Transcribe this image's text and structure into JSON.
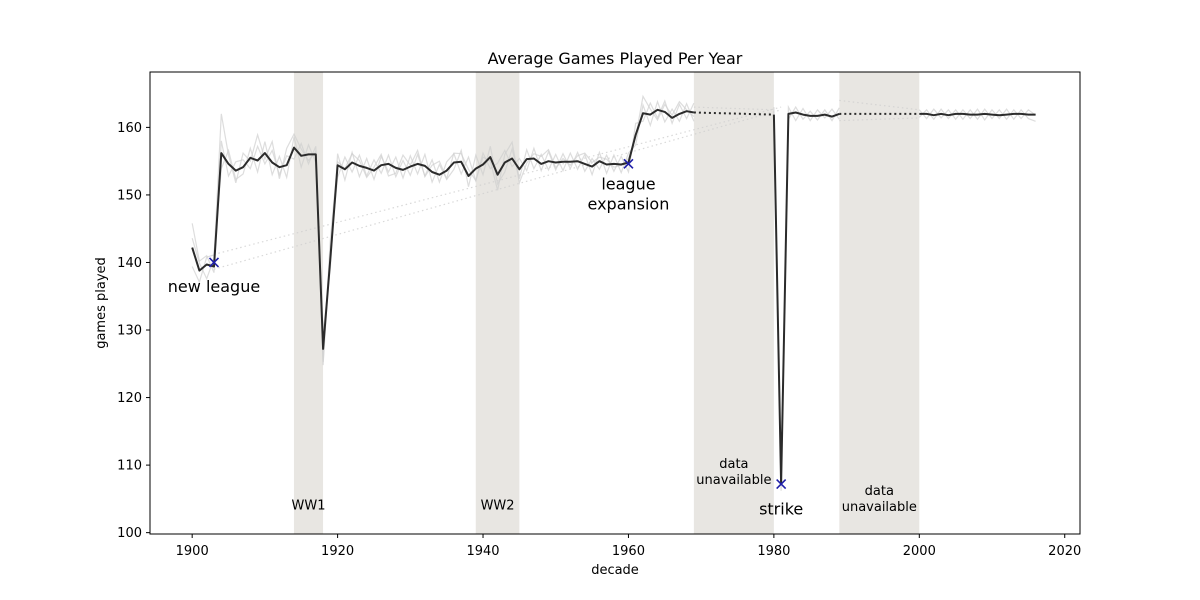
{
  "chart_data": {
    "type": "line",
    "title": "Average Games Played Per Year",
    "xlabel": "decade",
    "ylabel": "games played",
    "xlim": [
      1894.2,
      2022.1
    ],
    "ylim": [
      99.8,
      168.2
    ],
    "xticks": [
      1900,
      1920,
      1940,
      1960,
      1980,
      2000,
      2020
    ],
    "yticks": [
      100,
      110,
      120,
      130,
      140,
      150,
      160
    ],
    "grid": false,
    "shaded_regions": [
      {
        "x0": 1914,
        "x1": 1918,
        "label": "WW1",
        "label_x": 1916,
        "label_y": 104
      },
      {
        "x0": 1939,
        "x1": 1945,
        "label": "WW2",
        "label_x": 1942,
        "label_y": 104
      },
      {
        "x0": 1969,
        "x1": 1980,
        "label": "data unavailable",
        "label_lines": [
          "data",
          "unavailable"
        ],
        "label_x": 1974.5,
        "label_y": 109
      },
      {
        "x0": 1989,
        "x1": 2000,
        "label": "data unavailable",
        "label_lines": [
          "data",
          "unavailable"
        ],
        "label_x": 1994.5,
        "label_y": 105
      }
    ],
    "annotations": [
      {
        "x": 1903,
        "y": 140,
        "text": "new league",
        "text_lines": [
          "new league"
        ],
        "text_x": 1903,
        "text_y": 136.5
      },
      {
        "x": 1960,
        "y": 154.6,
        "text": "league expansion",
        "text_lines": [
          "league",
          "expansion"
        ],
        "text_x": 1960,
        "text_y": 150.2
      },
      {
        "x": 1981,
        "y": 107.2,
        "text": "strike",
        "text_lines": [
          "strike"
        ],
        "text_x": 1981,
        "text_y": 103.6
      }
    ],
    "main_series": {
      "segments": [
        {
          "x": [
            1900,
            1901,
            1902,
            1903,
            1904,
            1905,
            1906,
            1907,
            1908,
            1909,
            1910,
            1911,
            1912,
            1913,
            1914,
            1915,
            1916,
            1917,
            1918,
            1919,
            1920,
            1921,
            1922,
            1923,
            1924,
            1925,
            1926,
            1927,
            1928,
            1929,
            1930,
            1931,
            1932,
            1933,
            1934,
            1935,
            1936,
            1937,
            1938,
            1939,
            1940,
            1941,
            1942,
            1943,
            1944,
            1945,
            1946,
            1947,
            1948,
            1949,
            1950,
            1951,
            1952,
            1953,
            1954,
            1955,
            1956,
            1957,
            1958,
            1959,
            1960,
            1961,
            1962,
            1963,
            1964,
            1965,
            1966,
            1967,
            1968,
            1969
          ],
          "y": [
            142.2,
            138.8,
            139.7,
            139.4,
            156.2,
            154.6,
            153.6,
            154.1,
            155.5,
            155.1,
            156.2,
            154.8,
            154.1,
            154.4,
            157.0,
            155.8,
            156.0,
            156.0,
            127.2,
            140.5,
            154.4,
            153.8,
            154.8,
            154.3,
            154.0,
            153.6,
            154.4,
            154.6,
            154.0,
            153.7,
            154.2,
            154.6,
            154.3,
            153.4,
            153.0,
            153.6,
            154.8,
            154.9,
            152.8,
            153.9,
            154.5,
            155.6,
            153.0,
            154.8,
            155.4,
            153.8,
            155.3,
            155.4,
            154.6,
            155.0,
            154.8,
            154.9,
            154.9,
            155.0,
            154.6,
            154.2,
            155.0,
            154.5,
            154.6,
            154.5,
            154.8,
            158.9,
            162.1,
            161.9,
            162.6,
            162.3,
            161.4,
            162.0,
            162.4,
            162.2
          ]
        },
        {
          "x": [
            1980,
            1981,
            1982,
            1983,
            1984,
            1985,
            1986,
            1987,
            1988,
            1989
          ],
          "y": [
            161.9,
            107.2,
            162.0,
            162.2,
            161.9,
            161.7,
            161.7,
            161.9,
            161.6,
            162.0
          ]
        },
        {
          "x": [
            2000,
            2001,
            2002,
            2003,
            2004,
            2005,
            2006,
            2007,
            2008,
            2009,
            2010,
            2011,
            2012,
            2013,
            2014,
            2015,
            2016
          ],
          "y": [
            162.0,
            162.0,
            161.8,
            162.0,
            161.8,
            162.0,
            162.0,
            161.9,
            161.9,
            162.0,
            161.9,
            161.8,
            161.9,
            162.0,
            162.0,
            161.9,
            161.9
          ]
        }
      ],
      "gaps_dotted": [
        {
          "x": [
            1969,
            1980
          ],
          "y": [
            162.2,
            161.9
          ]
        },
        {
          "x": [
            1989,
            2000
          ],
          "y": [
            162.0,
            162.0
          ]
        }
      ]
    },
    "background_traces": [
      {
        "x": [
          1900,
          1901,
          1902,
          1903,
          1904,
          1905,
          1906,
          1907,
          1908,
          1909,
          1910,
          1911,
          1912,
          1913,
          1914,
          1915,
          1916,
          1917,
          1918,
          1919,
          1920,
          1921,
          1922,
          1923,
          1924,
          1925,
          1926,
          1927,
          1928,
          1929,
          1930,
          1931,
          1932,
          1933,
          1934,
          1935,
          1936,
          1937,
          1938,
          1939,
          1940,
          1941,
          1942,
          1943,
          1944,
          1945,
          1946,
          1947,
          1948,
          1949,
          1950,
          1951,
          1952,
          1953,
          1954,
          1955,
          1956,
          1957,
          1958,
          1959,
          1960,
          1961,
          1962,
          1963,
          1964,
          1965,
          1966,
          1967,
          1968,
          1969
        ],
        "y": [
          145.8,
          140.2,
          141.0,
          138.5,
          158.0,
          152.8,
          154.9,
          155.2,
          153.9,
          157.2,
          154.6,
          156.6,
          153.0,
          155.8,
          155.3,
          157.6,
          154.6,
          157.2,
          124.8,
          141.8,
          152.6,
          155.6,
          153.4,
          155.9,
          152.8,
          155.2,
          153.2,
          155.9,
          152.7,
          155.1,
          152.9,
          156.0,
          152.8,
          155.2,
          151.9,
          154.9,
          156.1,
          153.1,
          155.6,
          152.1,
          156.2,
          153.9,
          154.7,
          156.6,
          154.2,
          155.4,
          153.6,
          156.9,
          153.6,
          156.4,
          153.7,
          156.1,
          153.9,
          156.3,
          153.5,
          155.4,
          153.8,
          155.9,
          153.5,
          155.7,
          153.4,
          160.6,
          160.9,
          163.6,
          161.4,
          163.9,
          160.6,
          163.4,
          161.3,
          163.6
        ]
      },
      {
        "x": [
          1900,
          1901,
          1902,
          1903,
          1904,
          1905,
          1906,
          1907,
          1908,
          1909,
          1910,
          1911,
          1912,
          1913,
          1914,
          1915,
          1916,
          1917,
          1918,
          1919,
          1920,
          1921,
          1922,
          1923,
          1924,
          1925,
          1926,
          1927,
          1928,
          1929,
          1930,
          1931,
          1932,
          1933,
          1934,
          1935,
          1936,
          1937,
          1938,
          1939,
          1940,
          1941,
          1942,
          1943,
          1944,
          1945,
          1946,
          1947,
          1948,
          1949,
          1950,
          1951,
          1952,
          1953,
          1954,
          1955,
          1956,
          1957,
          1958,
          1959,
          1960,
          1961,
          1962,
          1963,
          1964,
          1965,
          1966,
          1967,
          1968,
          1969
        ],
        "y": [
          139.4,
          137.1,
          140.8,
          141.1,
          153.9,
          156.6,
          152.3,
          153.1,
          156.9,
          153.4,
          157.9,
          153.0,
          155.7,
          152.6,
          158.6,
          154.1,
          157.4,
          154.8,
          129.6,
          139.1,
          156.1,
          152.2,
          156.3,
          152.7,
          155.4,
          152.3,
          155.7,
          153.4,
          155.6,
          152.5,
          155.8,
          153.1,
          156.0,
          151.9,
          154.5,
          152.3,
          153.8,
          156.6,
          151.2,
          155.9,
          153.0,
          157.2,
          151.6,
          153.4,
          156.8,
          152.4,
          156.7,
          153.9,
          156.0,
          153.7,
          156.0,
          153.6,
          156.2,
          153.8,
          156.0,
          153.0,
          156.3,
          153.2,
          155.9,
          153.3,
          156.2,
          157.4,
          163.3,
          160.3,
          163.8,
          160.8,
          162.7,
          160.9,
          163.5,
          160.9
        ]
      },
      {
        "x": [
          1900,
          1901,
          1902,
          1903,
          1904,
          1905,
          1906,
          1907,
          1908,
          1909,
          1910,
          1911,
          1912,
          1913,
          1914,
          1915,
          1916,
          1917,
          1918,
          1919,
          1920,
          1921,
          1922,
          1923,
          1924,
          1925,
          1926,
          1927,
          1928,
          1929,
          1930,
          1931,
          1932,
          1933,
          1934,
          1935,
          1936,
          1937,
          1938,
          1939,
          1940,
          1941,
          1942,
          1943,
          1944,
          1945,
          1946,
          1947,
          1948,
          1949,
          1950,
          1951,
          1952,
          1953,
          1954,
          1955,
          1956,
          1957,
          1958,
          1959,
          1960,
          1961,
          1962,
          1963,
          1964,
          1965,
          1966,
          1967,
          1968,
          1969
        ],
        "y": [
          143.6,
          139.9,
          137.6,
          140.6,
          162.0,
          155.9,
          151.8,
          156.2,
          155.0,
          158.9,
          155.3,
          157.9,
          152.4,
          156.9,
          159.0,
          156.8,
          155.1,
          156.4,
          125.3,
          143.3,
          154.9,
          153.9,
          156.1,
          155.1,
          152.6,
          154.1,
          156.0,
          152.8,
          153.2,
          155.9,
          154.4,
          156.6,
          152.7,
          154.4,
          155.0,
          152.4,
          156.2,
          156.1,
          153.8,
          152.1,
          155.6,
          155.0,
          150.7,
          156.0,
          157.8,
          151.8,
          154.7,
          156.1,
          155.7,
          156.7,
          154.0,
          155.4,
          154.4,
          155.8,
          156.2,
          154.8,
          155.6,
          155.3,
          154.1,
          154.4,
          155.4,
          158.6,
          164.6,
          162.7,
          161.1,
          163.4,
          161.8,
          163.8,
          162.6,
          161.6
        ]
      },
      {
        "x": [
          1980,
          1981,
          1982,
          1983,
          1984,
          1985,
          1986,
          1987,
          1988,
          1989
        ],
        "y": [
          163.0,
          106.2,
          163.0,
          161.0,
          162.8,
          161.0,
          162.6,
          161.4,
          162.7,
          161.2
        ]
      },
      {
        "x": [
          1980,
          1981,
          1982,
          1983,
          1984,
          1985,
          1986,
          1987,
          1988,
          1989
        ],
        "y": [
          160.8,
          108.4,
          161.2,
          163.0,
          161.2,
          162.4,
          161.1,
          162.6,
          161.0,
          162.9
        ]
      },
      {
        "x": [
          2000,
          2001,
          2002,
          2003,
          2004,
          2005,
          2006,
          2007,
          2008,
          2009,
          2010,
          2011,
          2012,
          2013,
          2014,
          2015,
          2016
        ],
        "y": [
          162.6,
          161.3,
          162.7,
          161.4,
          162.6,
          161.2,
          162.6,
          161.3,
          162.7,
          161.1,
          162.6,
          161.3,
          162.7,
          161.2,
          162.6,
          161.3,
          160.9
        ]
      },
      {
        "x": [
          2000,
          2001,
          2002,
          2003,
          2004,
          2005,
          2006,
          2007,
          2008,
          2009,
          2010,
          2011,
          2012,
          2013,
          2014,
          2015,
          2016
        ],
        "y": [
          161.5,
          162.6,
          161.2,
          162.7,
          161.3,
          162.6,
          161.2,
          162.6,
          161.2,
          162.7,
          161.3,
          162.6,
          161.2,
          162.6,
          161.3,
          162.6,
          161.8
        ]
      }
    ],
    "background_dotted": [
      {
        "x": [
          1903,
          1981
        ],
        "y": [
          139.0,
          162.6
        ]
      },
      {
        "x": [
          1903,
          1981
        ],
        "y": [
          141.2,
          163.0
        ]
      },
      {
        "x": [
          1969,
          1980
        ],
        "y": [
          163.0,
          162.6
        ]
      },
      {
        "x": [
          1989,
          2000
        ],
        "y": [
          164.0,
          162.6
        ]
      },
      {
        "x": [
          1989,
          2000
        ],
        "y": [
          161.0,
          161.4
        ]
      }
    ],
    "colors": {
      "shade": "#e8e6e2",
      "main_line": "#2b2b2b",
      "background_line": "#cfcfcf",
      "marker": "#1f1fa8"
    }
  }
}
